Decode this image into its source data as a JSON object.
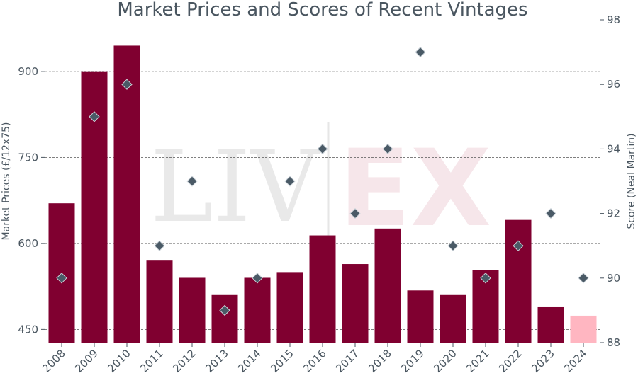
{
  "chart_data": {
    "type": "bar",
    "title": "Market Prices and Scores of Recent Vintages",
    "ylabel": "Market Prices (£/12x75)",
    "y2label": "Score (Neal Martin)",
    "ylim": [
      427,
      990
    ],
    "y2lim": [
      88,
      98
    ],
    "yticks": [
      450,
      600,
      750,
      900
    ],
    "y2ticks": [
      88,
      90,
      92,
      94,
      96,
      98
    ],
    "grid": true,
    "categories": [
      "2008",
      "2009",
      "2010",
      "2011",
      "2012",
      "2013",
      "2014",
      "2015",
      "2016",
      "2017",
      "2018",
      "2019",
      "2020",
      "2021",
      "2022",
      "2023",
      "2024"
    ],
    "series": [
      {
        "kind": "bar",
        "axis": "left",
        "values": [
          670,
          899,
          945,
          570,
          540,
          510,
          540,
          550,
          614,
          564,
          626,
          518,
          510,
          554,
          641,
          490,
          474
        ]
      },
      {
        "kind": "scatter",
        "axis": "right",
        "values": [
          90,
          95,
          96,
          91,
          93,
          89,
          90,
          93,
          94,
          92,
          94,
          97,
          91,
          90,
          91,
          92,
          90
        ]
      }
    ],
    "colors": {
      "bar": "#800030",
      "bar_last": "#ffb6c1",
      "marker": "#4a5a66",
      "marker_stroke": "#cfd6dc",
      "text": "#4a5660",
      "grid": "#555555"
    },
    "watermark": {
      "left": "LIV",
      "right": "EX"
    }
  }
}
